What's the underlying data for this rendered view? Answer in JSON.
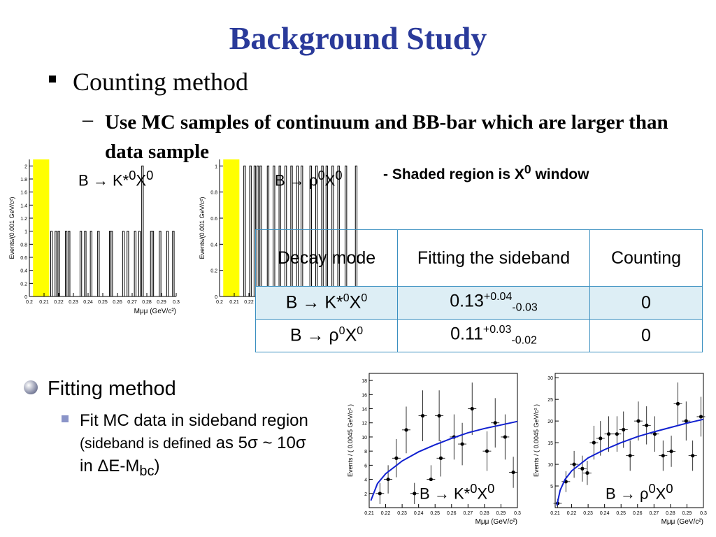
{
  "title": "Background Study",
  "bullet1": "Counting method",
  "bullet2_dash": "–",
  "bullet2": "Use MC samples of continuum and BB-bar which are larger than data sample",
  "side_note_prefix": "- ",
  "side_note": "Shaded region is X",
  "side_note_sup": "0",
  "side_note_suffix": " window",
  "arrow": "→",
  "table": {
    "headers": [
      "Decay mode",
      "Fitting the sideband",
      "Counting"
    ],
    "rows": [
      {
        "mode_base": "B",
        "mode_particle": "K*",
        "mode_sup": "0",
        "mode_x": "X",
        "mode_x_sup": "0",
        "fit": "0.13",
        "fit_up": "+0.04",
        "fit_down": "-0.03",
        "count": "0"
      },
      {
        "mode_base": "B",
        "mode_particle": "ρ",
        "mode_sup": "0",
        "mode_x": "X",
        "mode_x_sup": "0",
        "fit": "0.11",
        "fit_up": "+0.03",
        "fit_down": "-0.02",
        "count": "0"
      }
    ]
  },
  "fit_heading": "Fitting method",
  "fit_detail_main": "Fit MC data in sideband region",
  "fit_detail_paren": "(sideband is defined",
  "fit_detail_tail_pre": "as 5σ ~ 10σ in ΔE-M",
  "fit_detail_tail_sub": "bc",
  "fit_detail_tail_post": ")",
  "chart_data": [
    {
      "type": "bar",
      "panel_label": [
        "B",
        "→",
        "K*",
        "0",
        "X",
        "0"
      ],
      "ylabel": "Events/(0.001 GeV/c²)",
      "xlabel": "Mμμ (GeV/c²)",
      "xlim": [
        0.2,
        0.3
      ],
      "ylim": [
        0,
        2.1
      ],
      "xticks": [
        "0.2",
        "0.21",
        "0.22",
        "0.23",
        "0.24",
        "0.25",
        "0.26",
        "0.27",
        "0.28",
        "0.29",
        "0.3"
      ],
      "yticks": [
        "0",
        "0.2",
        "0.4",
        "0.6",
        "0.8",
        "1",
        "1.2",
        "1.4",
        "1.6",
        "1.8",
        "2"
      ],
      "shaded_window": [
        0.2025,
        0.2135
      ],
      "shade_color": "#ffff00",
      "bins": [
        0.2145,
        0.2175,
        0.2195,
        0.2245,
        0.2265,
        0.2345,
        0.2375,
        0.2415,
        0.2465,
        0.2545,
        0.2555,
        0.2635,
        0.2665,
        0.2715,
        0.2745,
        0.2765,
        0.2825,
        0.2835,
        0.2885,
        0.2935,
        0.2975
      ],
      "values": [
        1,
        1,
        1,
        1,
        1,
        1,
        1,
        1,
        1,
        1,
        1,
        1,
        1,
        1,
        1,
        2,
        1,
        1,
        1,
        1,
        1
      ]
    },
    {
      "type": "bar",
      "panel_label": [
        "B",
        "→",
        "ρ",
        "0",
        "X",
        "0"
      ],
      "ylabel": "Events/(0.001 GeV/c²)",
      "xlabel": "",
      "xlim": [
        0.2,
        0.3
      ],
      "ylim": [
        0,
        1.05
      ],
      "xticks": [
        "0.2",
        "0.21",
        "0.22"
      ],
      "yticks": [
        "0",
        "0.2",
        "0.4",
        "0.6",
        "0.8",
        "1"
      ],
      "shaded_window": [
        0.2025,
        0.2135
      ],
      "shade_color": "#ffff00",
      "bins": [
        0.2165,
        0.2205,
        0.2235,
        0.2255,
        0.2275,
        0.2325,
        0.2365,
        0.2405,
        0.2445,
        0.2485,
        0.2525,
        0.2555,
        0.2615,
        0.2655,
        0.2695,
        0.2725,
        0.2765,
        0.2805,
        0.2855,
        0.2925
      ],
      "values": [
        1,
        1,
        1,
        1,
        1,
        1,
        1,
        1,
        1,
        1,
        1,
        1,
        1,
        1,
        1,
        1,
        1,
        1,
        1,
        1
      ]
    },
    {
      "type": "scatter",
      "panel_label": [
        "B",
        "→",
        "K*",
        "0",
        "X",
        "0"
      ],
      "ylabel": "Events / ( 0.0045 GeV/c² )",
      "xlabel": "Mμμ (GeV/c²)",
      "xlim": [
        0.21,
        0.3
      ],
      "ylim": [
        0,
        19
      ],
      "xticks": [
        "0.21",
        "0.22",
        "0.23",
        "0.24",
        "0.25",
        "0.26",
        "0.27",
        "0.28",
        "0.29",
        "0.3"
      ],
      "yticks": [
        "2",
        "4",
        "6",
        "8",
        "10",
        "12",
        "14",
        "16",
        "18"
      ],
      "points": [
        {
          "x": 0.2165,
          "y": 2,
          "err": 1.5
        },
        {
          "x": 0.2215,
          "y": 4,
          "err": 2
        },
        {
          "x": 0.2265,
          "y": 7,
          "err": 2.7
        },
        {
          "x": 0.2325,
          "y": 11,
          "err": 3.3
        },
        {
          "x": 0.2375,
          "y": 2,
          "err": 1.5
        },
        {
          "x": 0.2425,
          "y": 13,
          "err": 3.6
        },
        {
          "x": 0.2525,
          "y": 13,
          "err": 3.6
        },
        {
          "x": 0.2615,
          "y": 10,
          "err": 3.2
        },
        {
          "x": 0.2665,
          "y": 9,
          "err": 3
        },
        {
          "x": 0.2725,
          "y": 14,
          "err": 3.7
        },
        {
          "x": 0.2815,
          "y": 8,
          "err": 2.8
        },
        {
          "x": 0.2865,
          "y": 12,
          "err": 3.5
        },
        {
          "x": 0.2925,
          "y": 10,
          "err": 3.2
        },
        {
          "x": 0.2975,
          "y": 5,
          "err": 2.2
        },
        {
          "x": 0.2535,
          "y": 7,
          "err": 2.6
        },
        {
          "x": 0.2475,
          "y": 4,
          "err": 2
        }
      ],
      "fit_color": "#1020d0",
      "fit_curve": {
        "x": [
          0.211,
          0.215,
          0.22,
          0.23,
          0.24,
          0.25,
          0.26,
          0.27,
          0.28,
          0.29,
          0.3
        ],
        "y": [
          1,
          3.4,
          4.8,
          6.6,
          7.9,
          8.9,
          9.8,
          10.6,
          11.2,
          11.7,
          12.2
        ]
      }
    },
    {
      "type": "scatter",
      "panel_label": [
        "B",
        "→",
        "ρ",
        "0",
        "X",
        "0"
      ],
      "ylabel": "Events / ( 0.0045 GeV/c² )",
      "xlabel": "Mμμ (GeV/c²)",
      "xlim": [
        0.21,
        0.3
      ],
      "ylim": [
        0,
        31
      ],
      "xticks": [
        "0.21",
        "0.22",
        "0.23",
        "0.24",
        "0.25",
        "0.26",
        "0.27",
        "0.28",
        "0.29",
        "0.3"
      ],
      "yticks": [
        "5",
        "10",
        "15",
        "20",
        "25",
        "30"
      ],
      "points": [
        {
          "x": 0.2115,
          "y": 1,
          "err": 1
        },
        {
          "x": 0.2165,
          "y": 6,
          "err": 2.4
        },
        {
          "x": 0.2215,
          "y": 10,
          "err": 3.1
        },
        {
          "x": 0.2265,
          "y": 9,
          "err": 3
        },
        {
          "x": 0.2295,
          "y": 8,
          "err": 2.8
        },
        {
          "x": 0.2335,
          "y": 15,
          "err": 3.9
        },
        {
          "x": 0.2375,
          "y": 16,
          "err": 4
        },
        {
          "x": 0.2425,
          "y": 17,
          "err": 4.1
        },
        {
          "x": 0.2475,
          "y": 17,
          "err": 4.1
        },
        {
          "x": 0.2515,
          "y": 18,
          "err": 4.2
        },
        {
          "x": 0.2555,
          "y": 12,
          "err": 3.5
        },
        {
          "x": 0.2605,
          "y": 20,
          "err": 4.5
        },
        {
          "x": 0.2655,
          "y": 19,
          "err": 4.4
        },
        {
          "x": 0.2705,
          "y": 17,
          "err": 4.1
        },
        {
          "x": 0.2755,
          "y": 12,
          "err": 3.5
        },
        {
          "x": 0.2805,
          "y": 13,
          "err": 3.6
        },
        {
          "x": 0.2845,
          "y": 24,
          "err": 4.9
        },
        {
          "x": 0.2895,
          "y": 20,
          "err": 4.5
        },
        {
          "x": 0.2935,
          "y": 12,
          "err": 3.5
        },
        {
          "x": 0.2985,
          "y": 21,
          "err": 4.6
        }
      ],
      "fit_color": "#1020d0",
      "fit_curve": {
        "x": [
          0.211,
          0.213,
          0.216,
          0.22,
          0.23,
          0.24,
          0.25,
          0.26,
          0.27,
          0.28,
          0.29,
          0.3
        ],
        "y": [
          0.5,
          4,
          6.5,
          8.5,
          11.5,
          13.4,
          15,
          16.4,
          17.5,
          18.5,
          19.5,
          20.4
        ]
      }
    }
  ]
}
